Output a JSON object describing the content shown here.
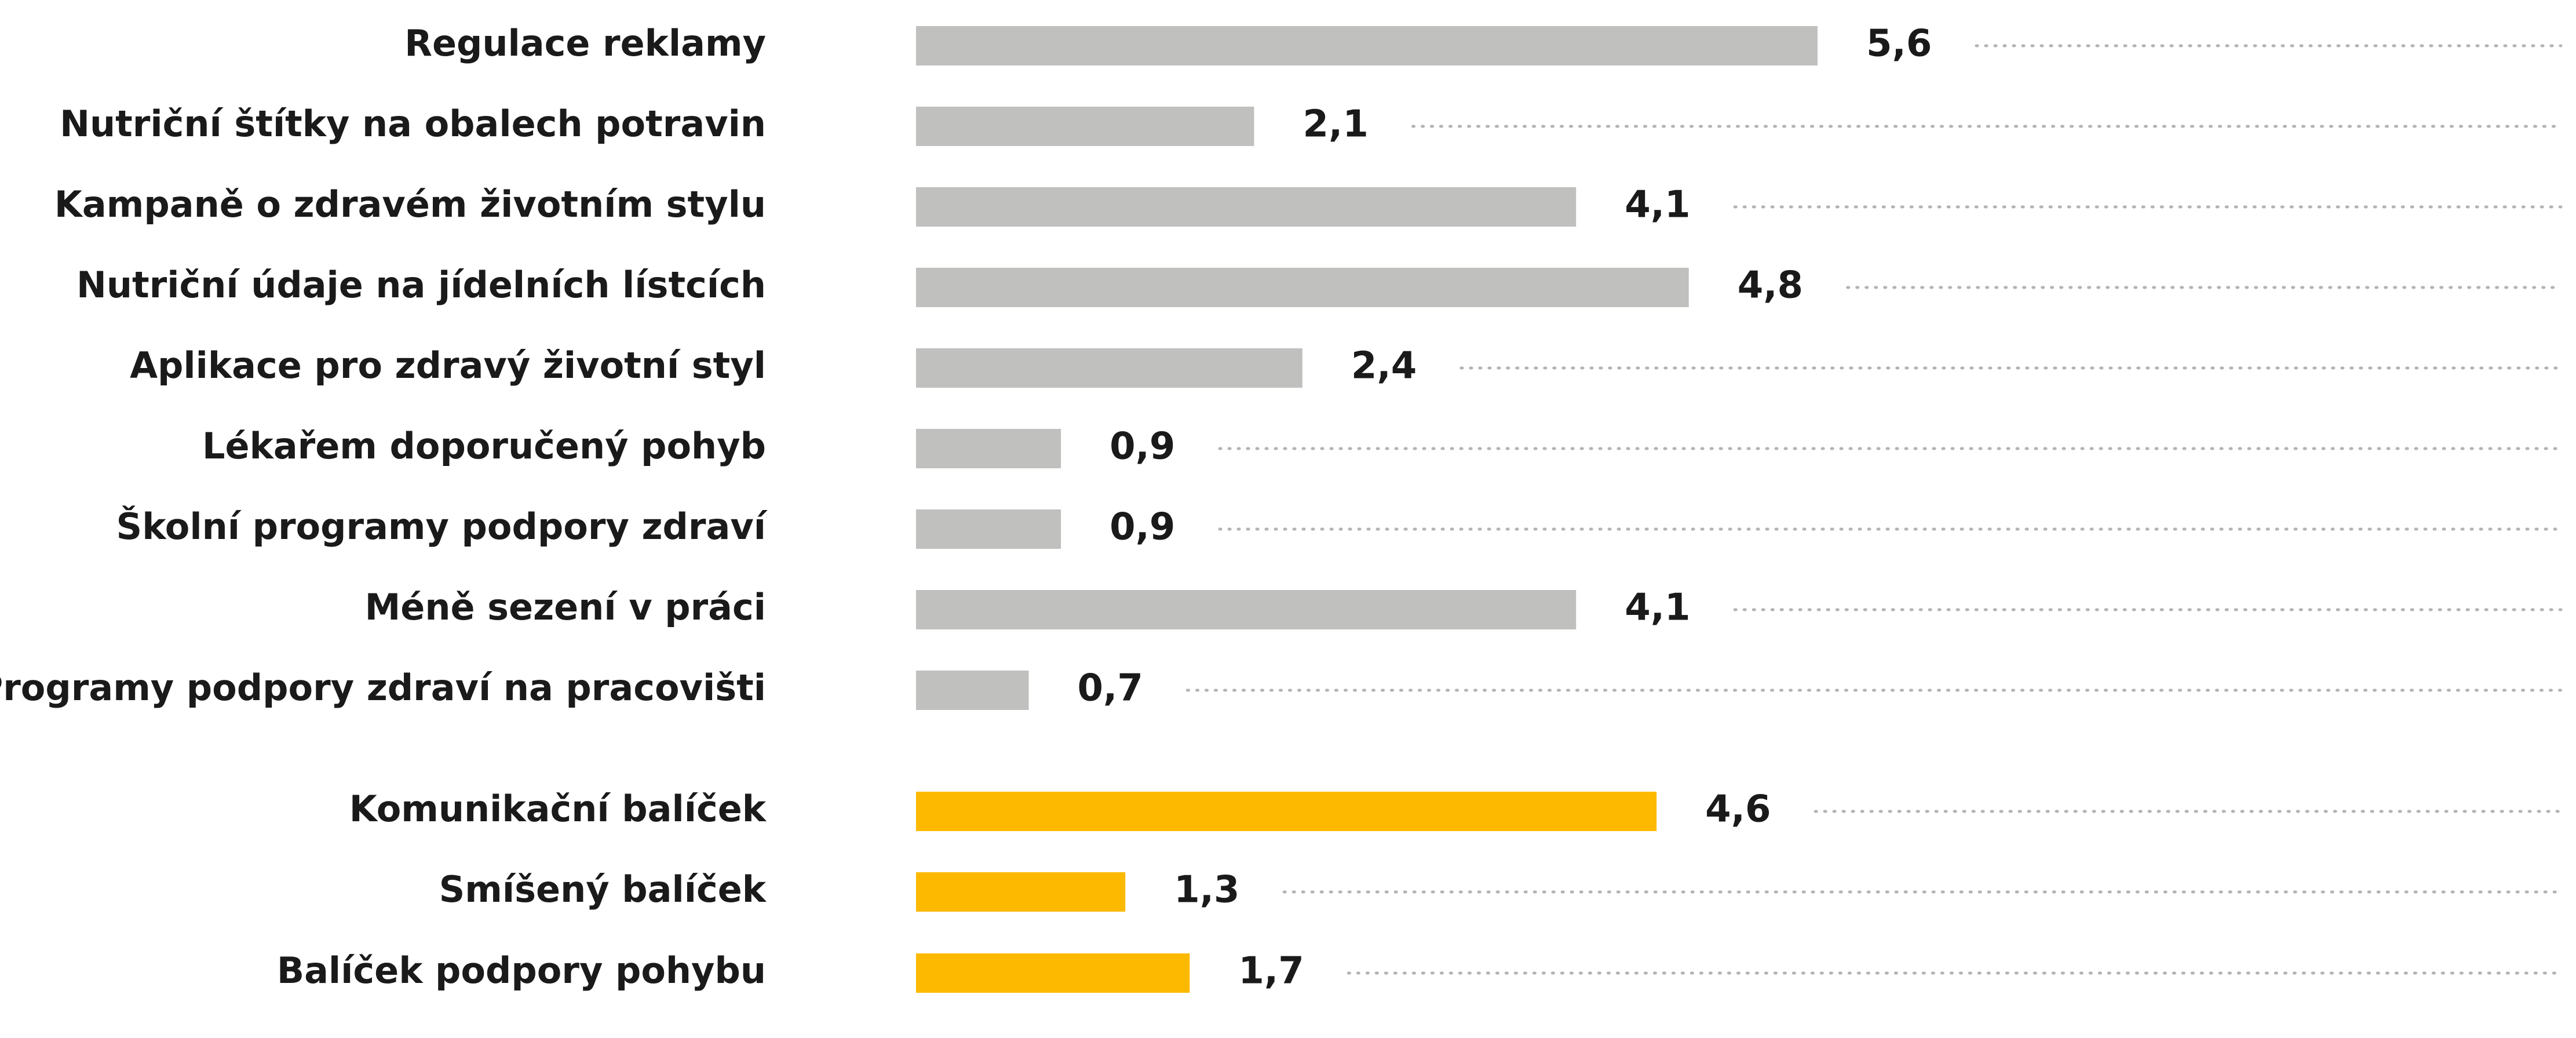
{
  "chart_data": {
    "type": "bar",
    "orientation": "horizontal",
    "categories": [
      "Regulace reklamy",
      "Nutriční štítky na obalech potravin",
      "Kampaně o zdravém životním stylu",
      "Nutriční údaje na jídelních lístcích",
      "Aplikace pro zdravý životní styl",
      "Lékařem doporučený pohyb",
      "Školní programy podpory zdraví",
      "Méně sezení v práci",
      "Programy podpory zdraví na pracovišti",
      "Komunikační balíček",
      "Smíšený balíček",
      "Balíček podpory pohybu"
    ],
    "values": [
      5.6,
      2.1,
      4.1,
      4.8,
      2.4,
      0.9,
      0.9,
      4.1,
      0.7,
      4.6,
      1.3,
      1.7
    ],
    "value_labels": [
      "5,6",
      "2,1",
      "4,1",
      "4,8",
      "2,4",
      "0,9",
      "0,9",
      "4,1",
      "0,7",
      "4,6",
      "1,3",
      "1,7"
    ],
    "groups": [
      "single",
      "single",
      "single",
      "single",
      "single",
      "single",
      "single",
      "single",
      "single",
      "package",
      "package",
      "package"
    ],
    "colors": {
      "single": "#c0c0bf",
      "package": "#fdb900",
      "leader": "#b3b3b3",
      "text": "#1a1a1a"
    },
    "xlim": [
      0,
      5.6
    ],
    "grid": false,
    "legend": "none",
    "title": "",
    "xlabel": "",
    "ylabel": ""
  }
}
